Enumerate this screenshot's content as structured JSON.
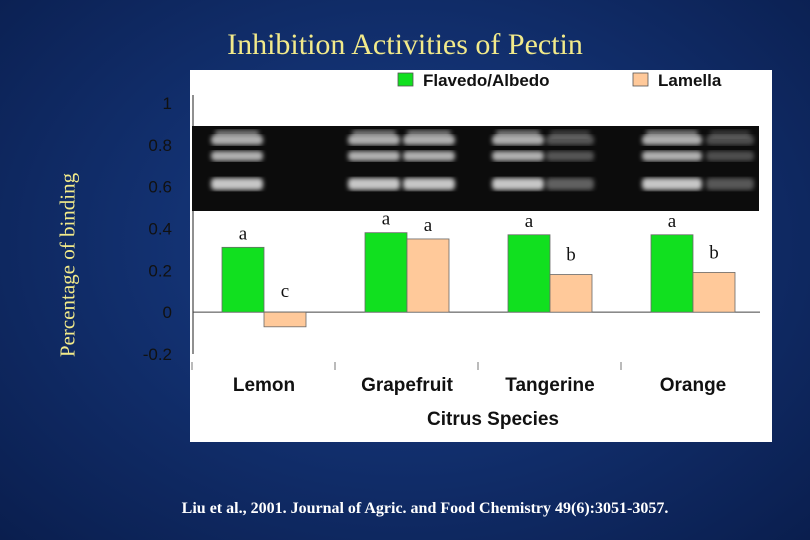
{
  "slide": {
    "title": "Inhibition Activities of Pectin",
    "ylabel": "Percentage of binding",
    "citation": "Liu et al., 2001. Journal of Agric. and Food Chemistry 49(6):3051-3057."
  },
  "chart_data": {
    "type": "bar",
    "xlabel": "Citrus Species",
    "categories": [
      "Lemon",
      "Grapefruit",
      "Tangerine",
      "Orange"
    ],
    "series": [
      {
        "name": "Flavedo/Albedo",
        "color": "#11e01f",
        "values": [
          0.31,
          0.38,
          0.37,
          0.37
        ],
        "labels": [
          "a",
          "a",
          "a",
          "a"
        ]
      },
      {
        "name": "Lamella",
        "color": "#ffc99a",
        "values": [
          -0.07,
          0.35,
          0.18,
          0.19
        ],
        "labels": [
          "c",
          "a",
          "b",
          "b"
        ]
      }
    ],
    "ylim": [
      -0.2,
      1
    ],
    "yticks": [
      "-0.2",
      "0",
      "0.2",
      "0.4",
      "0.6",
      "0.8",
      "1"
    ],
    "legend_position": "top",
    "gel_inset": true
  }
}
